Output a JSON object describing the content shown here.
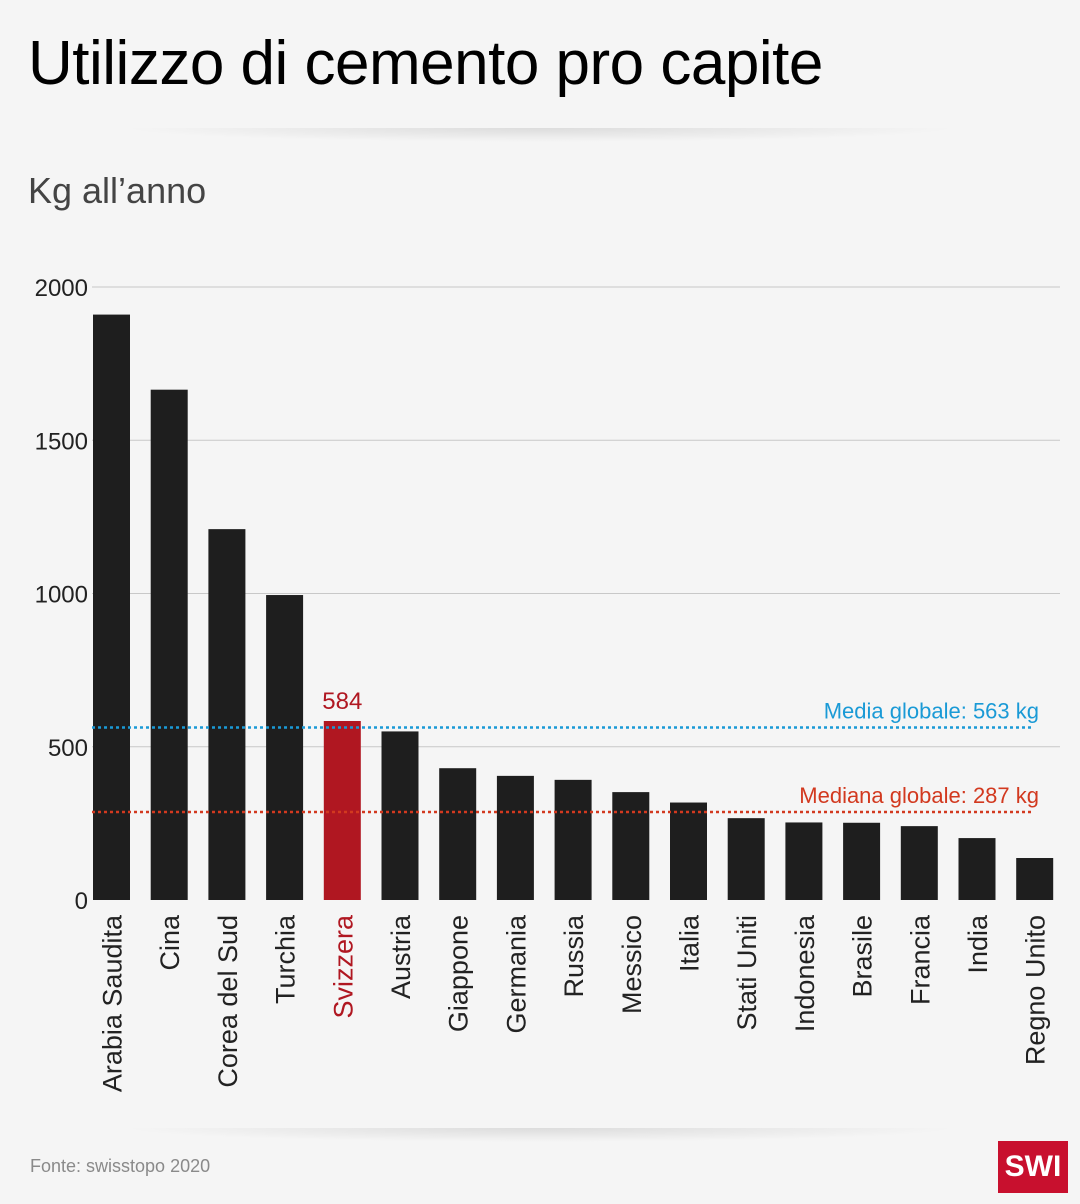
{
  "header": {
    "title": "Utilizzo di cemento pro capite",
    "subtitle": "Kg all’anno"
  },
  "footer": {
    "source": "Fonte: swisstopo 2020",
    "logo_text": "SWI"
  },
  "colors": {
    "bar": "#1e1e1e",
    "highlight": "#b01721",
    "mean_line": "#1a9ad6",
    "median_line": "#d2391f",
    "grid": "#c8c8c8",
    "axis_text": "#222222"
  },
  "chart_data": {
    "type": "bar",
    "title": "Utilizzo di cemento pro capite",
    "ylabel": "Kg all’anno",
    "xlabel": "",
    "ylim": [
      0,
      2000
    ],
    "yticks": [
      "0",
      "500",
      "1000",
      "1500",
      "2000"
    ],
    "grid": true,
    "categories": [
      "Arabia Saudita",
      "Cina",
      "Corea del Sud",
      "Turchia",
      "Svizzera",
      "Austria",
      "Giappone",
      "Germania",
      "Russia",
      "Messico",
      "Italia",
      "Stati Uniti",
      "Indonesia",
      "Brasile",
      "Francia",
      "India",
      "Regno Unito"
    ],
    "values": [
      1910,
      1665,
      1210,
      995,
      584,
      550,
      430,
      405,
      392,
      352,
      318,
      267,
      253,
      252,
      241,
      202,
      137
    ],
    "highlight": {
      "category": "Svizzera",
      "label": "584"
    },
    "reference_lines": [
      {
        "name": "mean",
        "value": 563,
        "label": "Media globale: 563 kg"
      },
      {
        "name": "median",
        "value": 287,
        "label": "Mediana globale: 287 kg"
      }
    ]
  }
}
